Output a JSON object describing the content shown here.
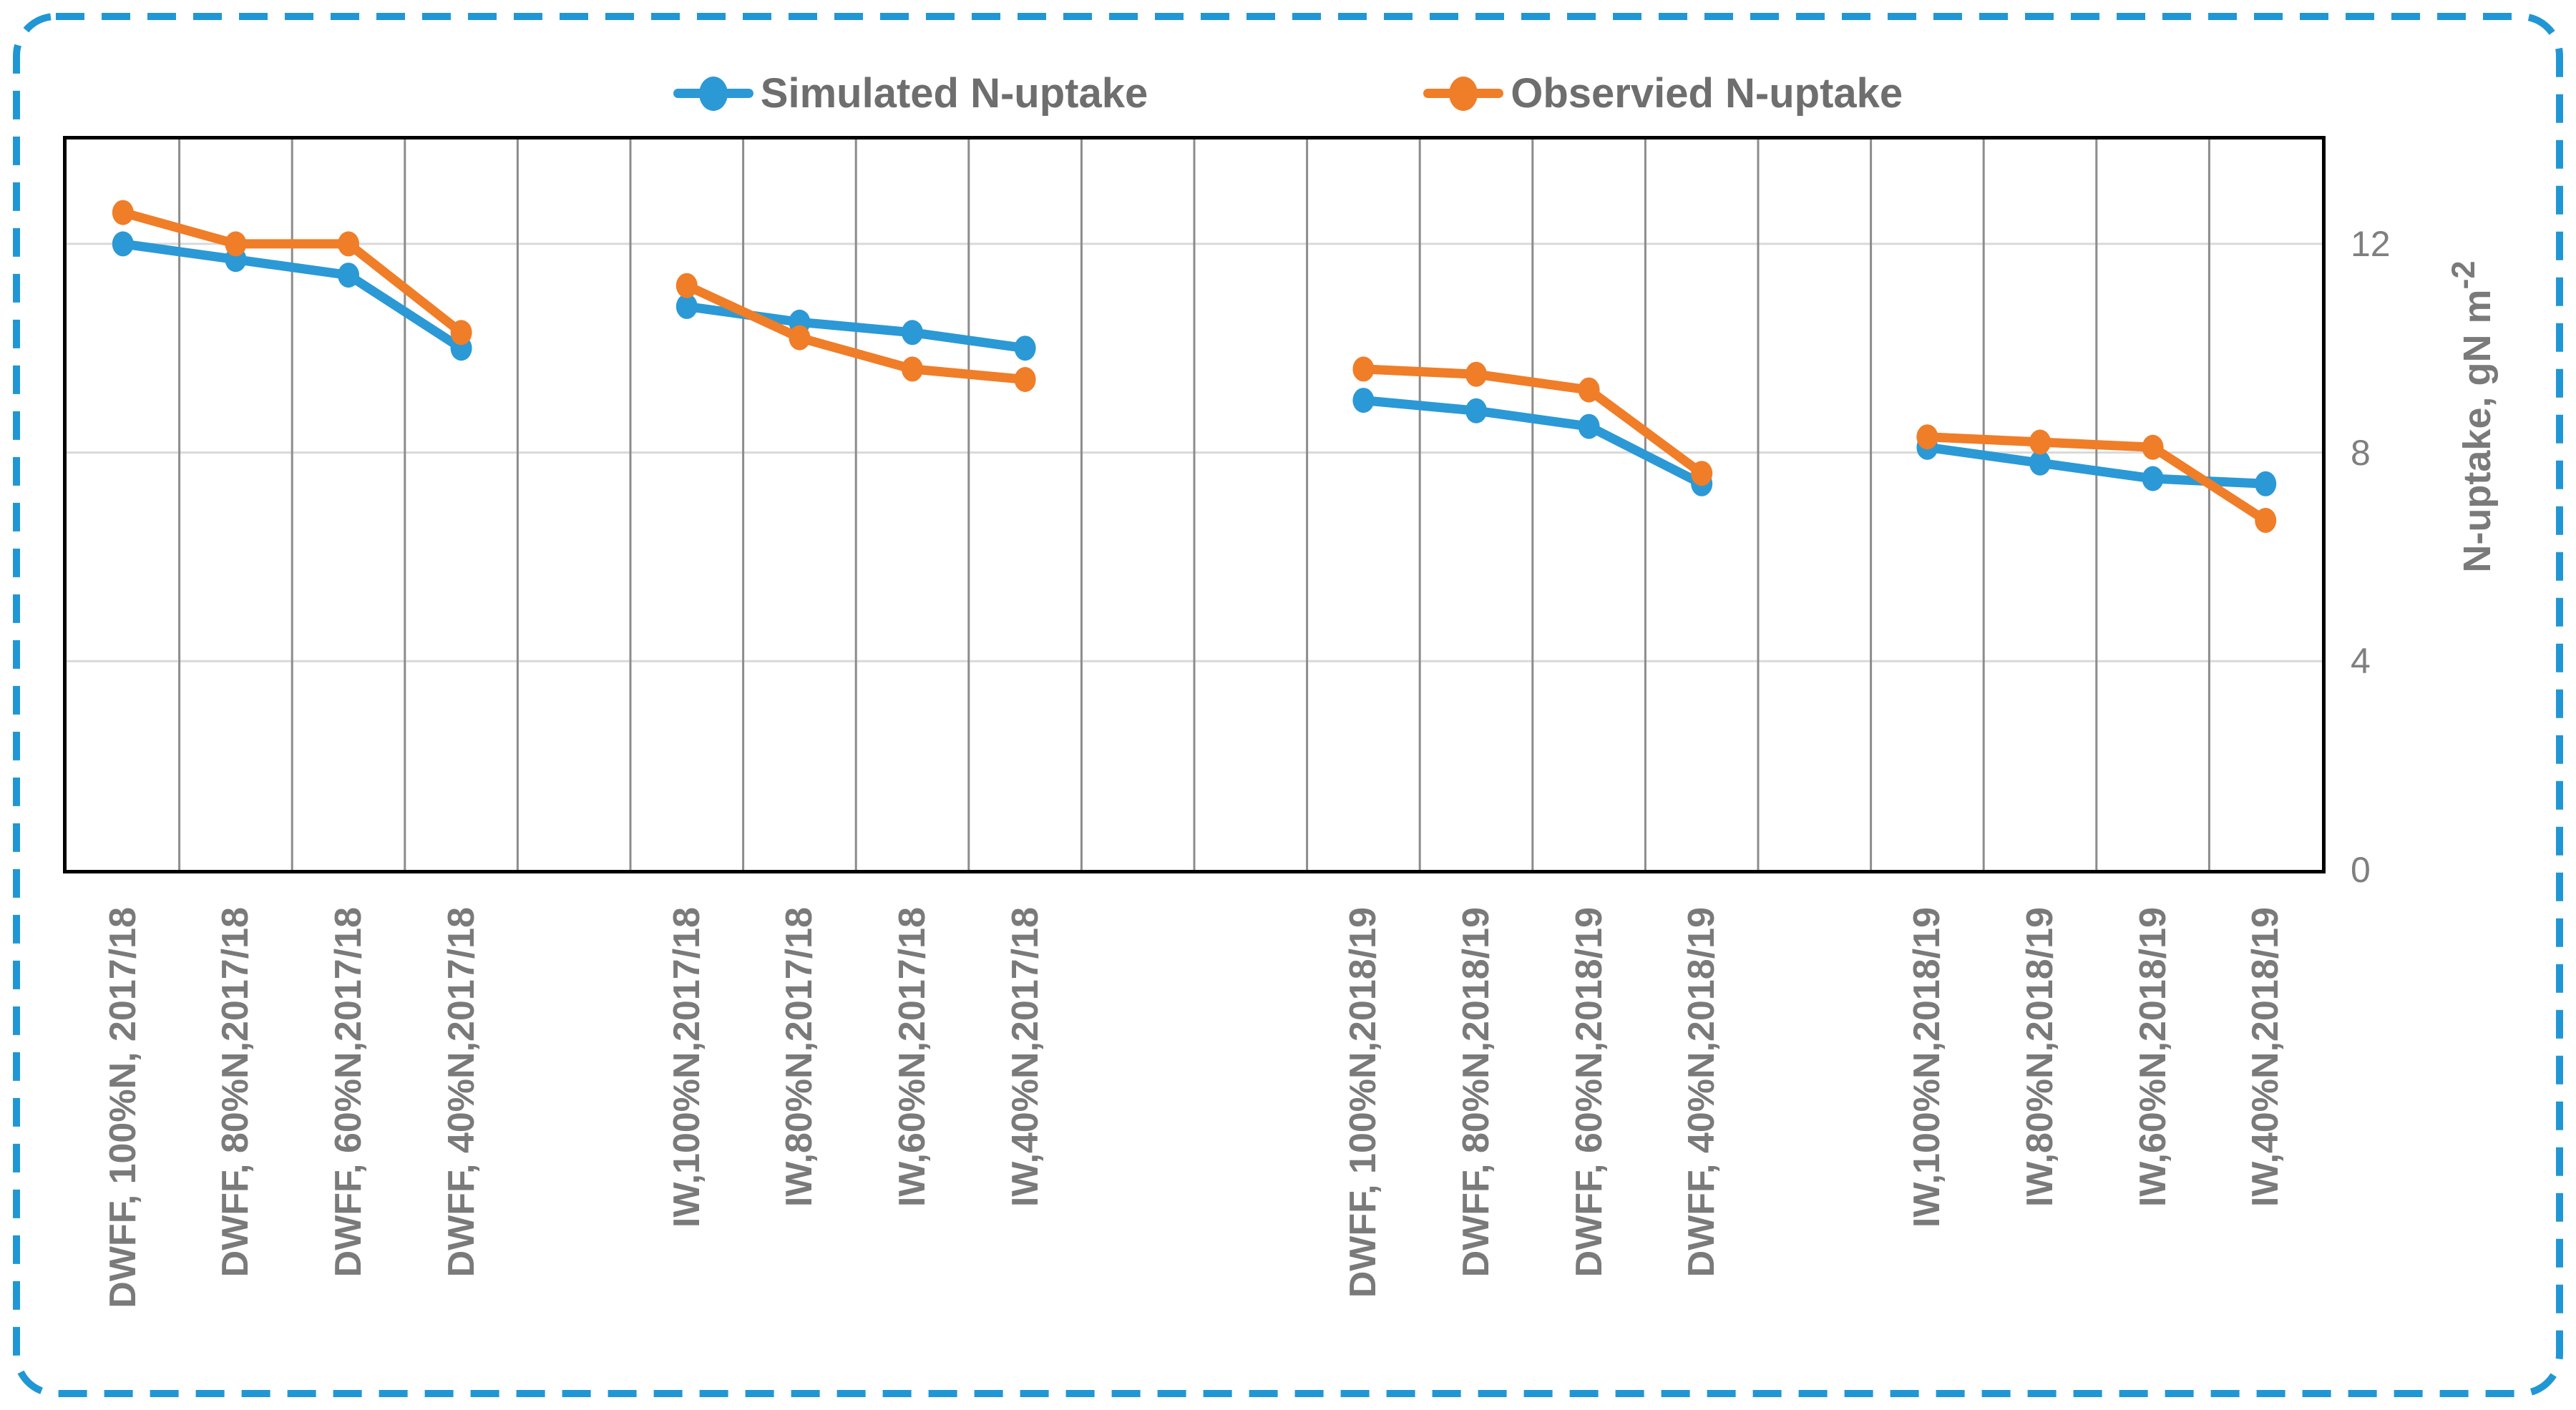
{
  "colors": {
    "series_simulated": "#2b99d5",
    "series_observed": "#f07d28",
    "outer_dashed_border": "#2097d4",
    "plot_border": "#000000",
    "vertical_gridline": "#8c8c8c",
    "horizontal_gridline": "#d9d9d9",
    "legend_text": "#6e6e6e",
    "axis_text": "#7a7a7a",
    "tick_text": "#7f7f7f"
  },
  "y_axis": {
    "title_text": "N-uptake, gN m",
    "title_sup": "-2"
  },
  "chart_data": {
    "type": "line",
    "title": "",
    "ylabel": "N-uptake, gN m-2",
    "ylim": [
      0,
      14
    ],
    "yticks": [
      0,
      4,
      8,
      12
    ],
    "legend_position": "top",
    "grid": {
      "vertical": true,
      "horizontal": true
    },
    "slot_count": 20,
    "series_meta": [
      {
        "name": "Simulated N-uptake",
        "color": "#2b99d5"
      },
      {
        "name": "Observied N-uptake",
        "color": "#f07d28"
      }
    ],
    "groups": [
      {
        "start_slot": 0,
        "categories": [
          "DWFF, 100%N, 2017/18",
          "DWFF, 80%N,2017/18",
          "DWFF, 60%N,2017/18",
          "DWFF, 40%N,2017/18"
        ],
        "series": [
          {
            "name": "Simulated N-uptake",
            "values": [
              12.0,
              11.7,
              11.4,
              10.0
            ]
          },
          {
            "name": "Observied N-uptake",
            "values": [
              12.6,
              12.0,
              12.0,
              10.3
            ]
          }
        ]
      },
      {
        "start_slot": 5,
        "categories": [
          "IW,100%N,2017/18",
          "IW,80%N,2017/18",
          "IW,60%N,2017/18",
          "IW,40%N,2017/18"
        ],
        "series": [
          {
            "name": "Simulated N-uptake",
            "values": [
              10.8,
              10.5,
              10.3,
              10.0
            ]
          },
          {
            "name": "Observied N-uptake",
            "values": [
              11.2,
              10.2,
              9.6,
              9.4
            ]
          }
        ]
      },
      {
        "start_slot": 11,
        "categories": [
          "DWFF, 100%N,2018/19",
          "DWFF, 80%N,2018/19",
          "DWFF, 60%N,2018/19",
          "DWFF, 40%N,2018/19"
        ],
        "series": [
          {
            "name": "Simulated N-uptake",
            "values": [
              9.0,
              8.8,
              8.5,
              7.4
            ]
          },
          {
            "name": "Observied N-uptake",
            "values": [
              9.6,
              9.5,
              9.2,
              7.6
            ]
          }
        ]
      },
      {
        "start_slot": 16,
        "categories": [
          "IW,100%N,2018/19",
          "IW,80%N,2018/19",
          "IW,60%N,2018/19",
          "IW,40%N,2018/19"
        ],
        "series": [
          {
            "name": "Simulated N-uptake",
            "values": [
              8.1,
              7.8,
              7.5,
              7.4
            ]
          },
          {
            "name": "Observied N-uptake",
            "values": [
              8.3,
              8.2,
              8.1,
              6.7
            ]
          }
        ]
      }
    ]
  }
}
